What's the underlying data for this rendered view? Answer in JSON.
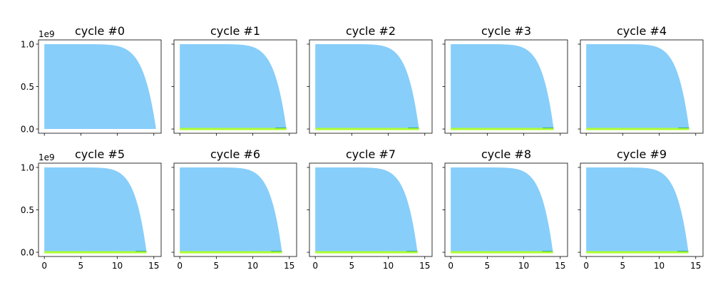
{
  "figure": {
    "y_offset_label": "1e9"
  },
  "shared_axes": {
    "x_ticks": [
      0,
      5,
      10,
      15
    ],
    "x_tick_labels": [
      "0",
      "5",
      "10",
      "15"
    ],
    "y_ticks": [
      0,
      0.5,
      1.0
    ],
    "y_tick_labels": [
      "0.0",
      "0.5",
      "1.0"
    ],
    "xlim": [
      -0.8,
      16
    ],
    "ylim": [
      -0.05,
      1.05
    ]
  },
  "colors": {
    "main_area": "#87cefa",
    "lower_band": "#adff2f",
    "thin_band": "#3cb371",
    "axes_edge": "#000000"
  },
  "chart_data": [
    {
      "type": "area",
      "title": "cycle #0",
      "t_end": 15.3,
      "has_lower_band": false,
      "y_peak": 1.0
    },
    {
      "type": "area",
      "title": "cycle #1",
      "t_end": 14.6,
      "has_lower_band": true,
      "y_peak": 1.0
    },
    {
      "type": "area",
      "title": "cycle #2",
      "t_end": 14.2,
      "has_lower_band": true,
      "y_peak": 1.0
    },
    {
      "type": "area",
      "title": "cycle #3",
      "t_end": 14.1,
      "has_lower_band": true,
      "y_peak": 1.0
    },
    {
      "type": "area",
      "title": "cycle #4",
      "t_end": 14.1,
      "has_lower_band": true,
      "y_peak": 1.0
    },
    {
      "type": "area",
      "title": "cycle #5",
      "t_end": 14.0,
      "has_lower_band": true,
      "y_peak": 1.0
    },
    {
      "type": "area",
      "title": "cycle #6",
      "t_end": 14.0,
      "has_lower_band": true,
      "y_peak": 1.0
    },
    {
      "type": "area",
      "title": "cycle #7",
      "t_end": 14.0,
      "has_lower_band": true,
      "y_peak": 1.0
    },
    {
      "type": "area",
      "title": "cycle #8",
      "t_end": 14.0,
      "has_lower_band": true,
      "y_peak": 1.0
    },
    {
      "type": "area",
      "title": "cycle #9",
      "t_end": 14.0,
      "has_lower_band": true,
      "y_peak": 1.0
    }
  ]
}
